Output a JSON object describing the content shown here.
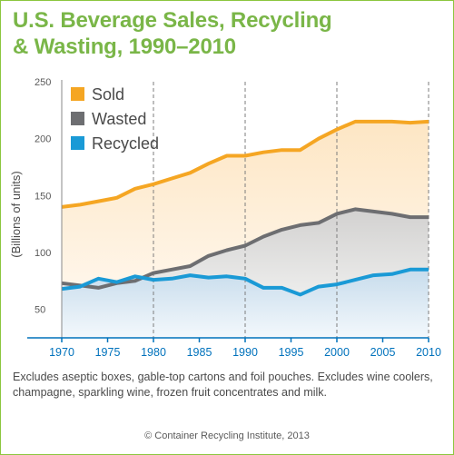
{
  "title": {
    "line1": "U.S. Beverage Sales, Recycling",
    "line2": "& Wasting, 1990–2010"
  },
  "note": "Excludes aseptic boxes, gable-top cartons and foil pouches. Excludes wine coolers, champagne, sparkling wine, frozen fruit concentrates and milk.",
  "credit": "© Container Recycling Institute, 2013",
  "colors": {
    "sold": "#f5a623",
    "wasted": "#6d6e71",
    "recycled": "#1a9ad6",
    "sold_fill": "#fde6c4",
    "wasted_fill": "#d2d1d0",
    "recycled_fill": "#c7dcec",
    "axis": "#0072bc",
    "border": "#8cc63f",
    "title": "#7ab648"
  },
  "chart_data": {
    "type": "area",
    "title": "U.S. Beverage Sales, Recycling & Wasting, 1990–2010",
    "xlabel": "",
    "ylabel": "(Billions of units)",
    "xlim": [
      1970,
      2010
    ],
    "ylim": [
      25,
      250
    ],
    "x_ticks": [
      1970,
      1975,
      1980,
      1985,
      1990,
      1995,
      2000,
      2005,
      2010
    ],
    "y_ticks": [
      50,
      100,
      150,
      200,
      250
    ],
    "x_gridlines": [
      1970,
      1980,
      1990,
      2000,
      2010
    ],
    "legend_position": "top-left",
    "series": [
      {
        "name": "Sold",
        "x": [
          1970,
          1972,
          1974,
          1976,
          1978,
          1980,
          1982,
          1984,
          1986,
          1988,
          1990,
          1992,
          1994,
          1996,
          1998,
          2000,
          2002,
          2004,
          2006,
          2008,
          2010
        ],
        "values": [
          140,
          142,
          145,
          148,
          156,
          160,
          165,
          170,
          178,
          185,
          185,
          188,
          190,
          190,
          200,
          208,
          215,
          215,
          215,
          214,
          215
        ]
      },
      {
        "name": "Wasted",
        "x": [
          1970,
          1972,
          1974,
          1976,
          1978,
          1980,
          1982,
          1984,
          1986,
          1988,
          1990,
          1992,
          1994,
          1996,
          1998,
          2000,
          2002,
          2004,
          2006,
          2008,
          2010
        ],
        "values": [
          73,
          71,
          69,
          73,
          75,
          82,
          85,
          88,
          97,
          102,
          106,
          114,
          120,
          124,
          126,
          134,
          138,
          136,
          134,
          131,
          131
        ]
      },
      {
        "name": "Recycled",
        "x": [
          1970,
          1972,
          1974,
          1976,
          1978,
          1980,
          1982,
          1984,
          1986,
          1988,
          1990,
          1992,
          1994,
          1996,
          1998,
          2000,
          2002,
          2004,
          2006,
          2008,
          2010
        ],
        "values": [
          68,
          70,
          77,
          74,
          79,
          76,
          77,
          80,
          78,
          79,
          77,
          69,
          69,
          63,
          70,
          72,
          76,
          80,
          81,
          85,
          85
        ]
      }
    ]
  }
}
